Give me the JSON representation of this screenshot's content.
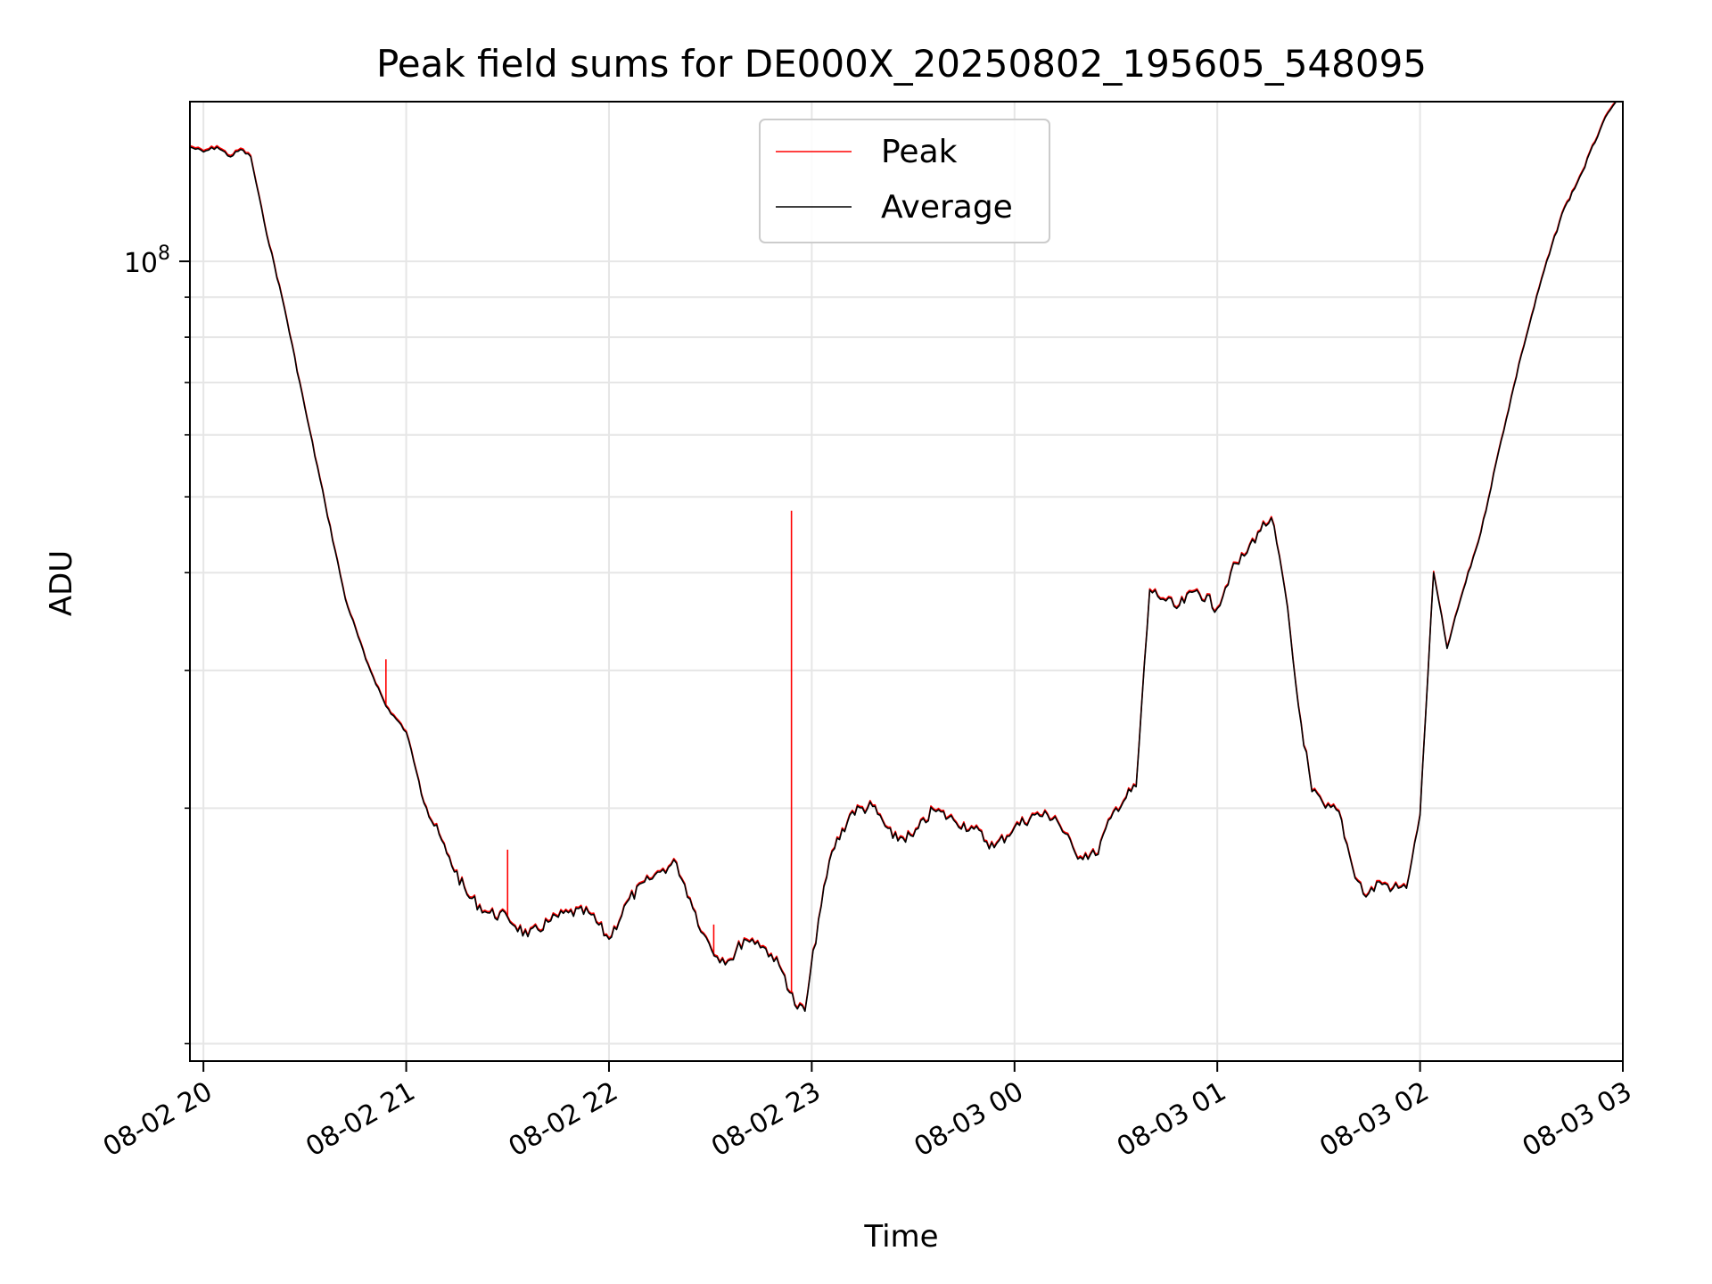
{
  "chart_data": {
    "type": "line",
    "title": "Peak field sums for DE000X_20250802_195605_548095",
    "xlabel": "Time",
    "ylabel": "ADU",
    "y_scale": "log",
    "grid": true,
    "legend_position": "top-center",
    "xlim": [
      "2025-08-02T19:56",
      "2025-08-03T03:00"
    ],
    "ylim": [
      9500000,
      160000000
    ],
    "x_ticks": [
      {
        "value": "2025-08-02T20:00",
        "label": "08-02 20"
      },
      {
        "value": "2025-08-02T21:00",
        "label": "08-02 21"
      },
      {
        "value": "2025-08-02T22:00",
        "label": "08-02 22"
      },
      {
        "value": "2025-08-02T23:00",
        "label": "08-02 23"
      },
      {
        "value": "2025-08-03T00:00",
        "label": "08-03 00"
      },
      {
        "value": "2025-08-03T01:00",
        "label": "08-03 01"
      },
      {
        "value": "2025-08-03T02:00",
        "label": "08-03 02"
      },
      {
        "value": "2025-08-03T03:00",
        "label": "08-03 03"
      }
    ],
    "y_major_ticks": [
      {
        "value": 100000000,
        "base": "10",
        "exponent": "8"
      }
    ],
    "y_minor_ticks": [
      10000000,
      20000000,
      30000000,
      40000000,
      50000000,
      60000000,
      70000000,
      80000000,
      90000000
    ],
    "series": [
      {
        "name": "Peak",
        "color": "#ff0000",
        "spikes": [
          {
            "x": "2025-08-02T20:54",
            "y": 31000000
          },
          {
            "x": "2025-08-02T21:30",
            "y": 17700000
          },
          {
            "x": "2025-08-02T22:31",
            "y": 14200000
          },
          {
            "x": "2025-08-02T22:54",
            "y": 48000000
          }
        ]
      },
      {
        "name": "Average",
        "color": "#000000",
        "x": [
          "2025-08-02T19:56",
          "2025-08-02T20:00",
          "2025-08-02T20:04",
          "2025-08-02T20:08",
          "2025-08-02T20:11",
          "2025-08-02T20:14",
          "2025-08-02T20:18",
          "2025-08-02T20:24",
          "2025-08-02T20:30",
          "2025-08-02T20:36",
          "2025-08-02T20:42",
          "2025-08-02T20:48",
          "2025-08-02T20:54",
          "2025-08-02T21:00",
          "2025-08-02T21:06",
          "2025-08-02T21:12",
          "2025-08-02T21:18",
          "2025-08-02T21:24",
          "2025-08-02T21:30",
          "2025-08-02T21:36",
          "2025-08-02T21:42",
          "2025-08-02T21:48",
          "2025-08-02T21:54",
          "2025-08-02T22:00",
          "2025-08-02T22:06",
          "2025-08-02T22:12",
          "2025-08-02T22:16",
          "2025-08-02T22:20",
          "2025-08-02T22:24",
          "2025-08-02T22:28",
          "2025-08-02T22:32",
          "2025-08-02T22:36",
          "2025-08-02T22:40",
          "2025-08-02T22:44",
          "2025-08-02T22:48",
          "2025-08-02T22:52",
          "2025-08-02T22:55",
          "2025-08-02T22:58",
          "2025-08-02T23:02",
          "2025-08-02T23:06",
          "2025-08-02T23:12",
          "2025-08-02T23:18",
          "2025-08-02T23:24",
          "2025-08-02T23:30",
          "2025-08-02T23:36",
          "2025-08-02T23:42",
          "2025-08-02T23:48",
          "2025-08-02T23:54",
          "2025-08-03T00:00",
          "2025-08-03T00:06",
          "2025-08-03T00:12",
          "2025-08-03T00:18",
          "2025-08-03T00:24",
          "2025-08-03T00:30",
          "2025-08-03T00:36",
          "2025-08-03T00:40",
          "2025-08-03T00:44",
          "2025-08-03T00:48",
          "2025-08-03T00:54",
          "2025-08-03T01:00",
          "2025-08-03T01:04",
          "2025-08-03T01:08",
          "2025-08-03T01:12",
          "2025-08-03T01:16",
          "2025-08-03T01:20",
          "2025-08-03T01:24",
          "2025-08-03T01:28",
          "2025-08-03T01:32",
          "2025-08-03T01:36",
          "2025-08-03T01:40",
          "2025-08-03T01:44",
          "2025-08-03T01:48",
          "2025-08-03T01:52",
          "2025-08-03T01:56",
          "2025-08-03T02:00",
          "2025-08-03T02:04",
          "2025-08-03T02:08",
          "2025-08-03T02:12",
          "2025-08-03T02:18",
          "2025-08-03T02:24",
          "2025-08-03T02:30",
          "2025-08-03T02:36",
          "2025-08-03T02:42",
          "2025-08-03T02:48",
          "2025-08-03T02:54",
          "2025-08-03T02:58"
        ],
        "y": [
          140000000,
          138000000,
          140000000,
          136000000,
          139000000,
          136000000,
          112000000,
          87000000,
          65000000,
          49000000,
          37000000,
          31000000,
          27000000,
          25000000,
          20000000,
          17500000,
          15500000,
          14700000,
          14500000,
          13700000,
          14300000,
          14700000,
          14700000,
          13600000,
          15300000,
          16200000,
          16700000,
          17000000,
          15300000,
          13800000,
          12900000,
          12800000,
          13600000,
          13500000,
          13000000,
          12200000,
          11200000,
          11000000,
          14400000,
          17600000,
          19800000,
          20100000,
          18300000,
          18400000,
          19900000,
          19300000,
          18800000,
          17800000,
          18900000,
          19600000,
          19500000,
          17500000,
          17400000,
          20000000,
          21300000,
          38000000,
          37000000,
          36000000,
          38000000,
          36000000,
          40000000,
          42000000,
          45000000,
          47000000,
          38000000,
          27000000,
          21000000,
          20000000,
          19800000,
          16800000,
          15400000,
          16100000,
          15800000,
          15800000,
          19600000,
          40000000,
          32000000,
          37000000,
          45000000,
          59000000,
          76000000,
          95000000,
          115000000,
          130000000,
          150000000,
          160000000
        ]
      }
    ]
  }
}
